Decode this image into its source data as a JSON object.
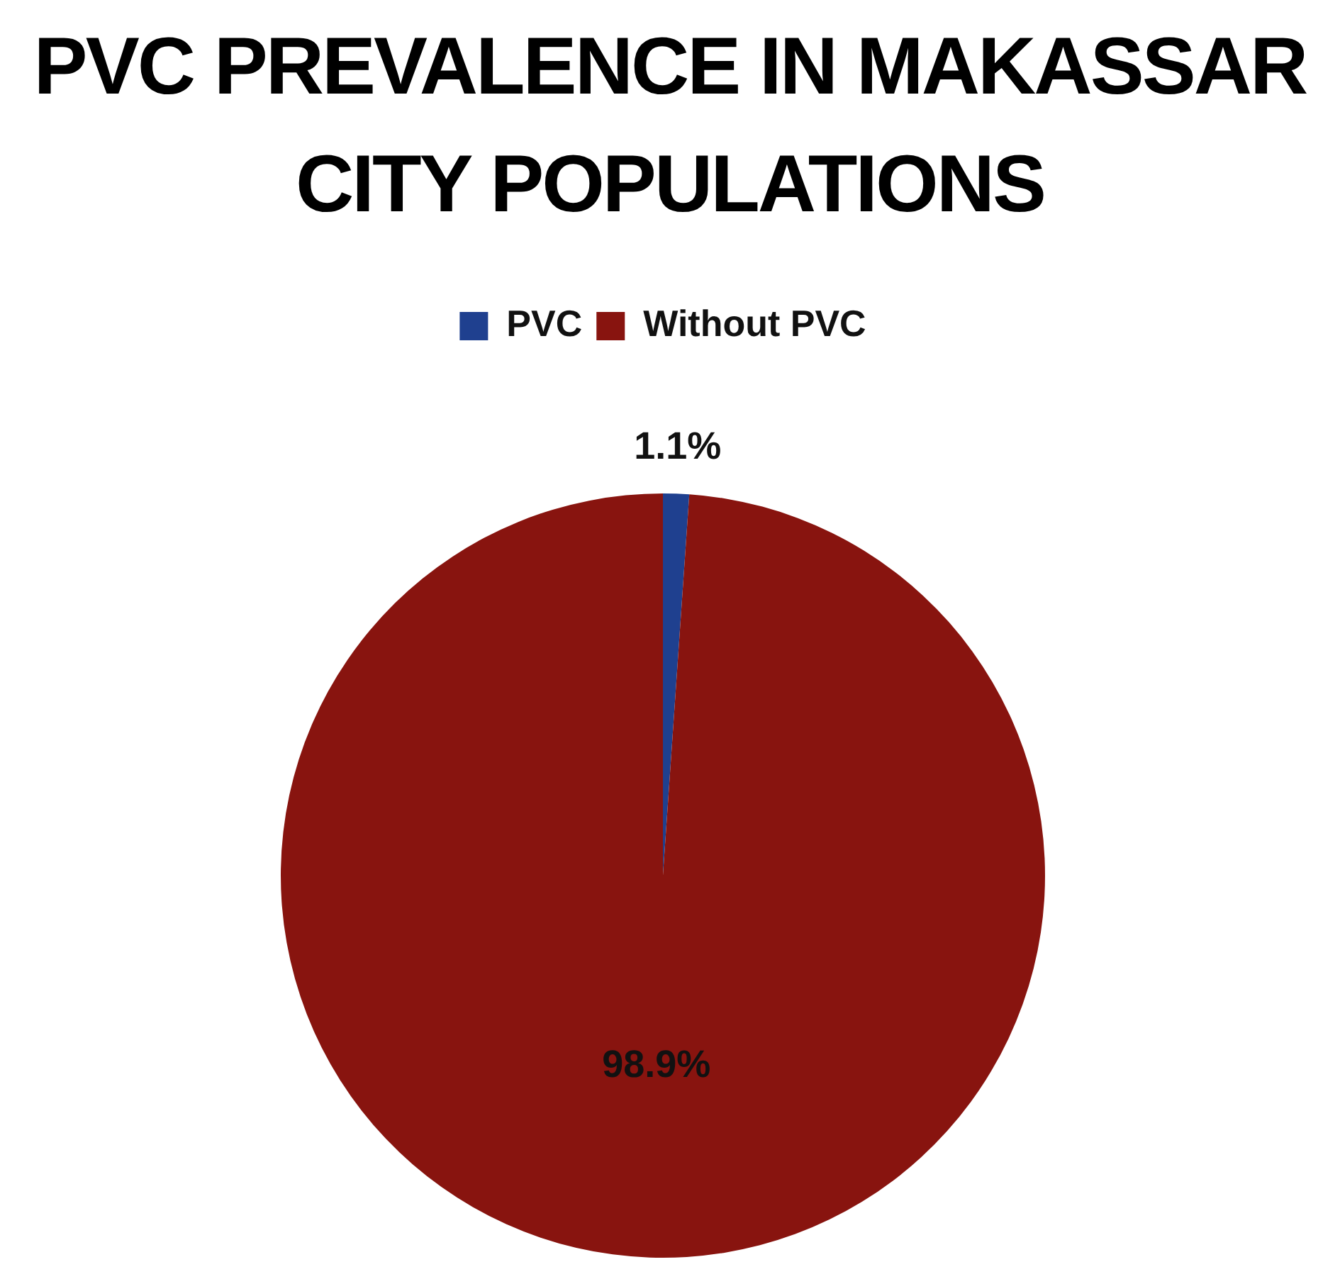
{
  "chart_data": {
    "type": "pie",
    "title": "PVC PREVALENCE IN MAKASSAR CITY POPULATIONS",
    "categories": [
      "PVC",
      "Without PVC"
    ],
    "values": [
      1.1,
      98.9
    ],
    "colors": [
      "#1f408f",
      "#88140f"
    ],
    "value_labels": [
      "1.1%",
      "98.9%"
    ],
    "legend": "top"
  }
}
